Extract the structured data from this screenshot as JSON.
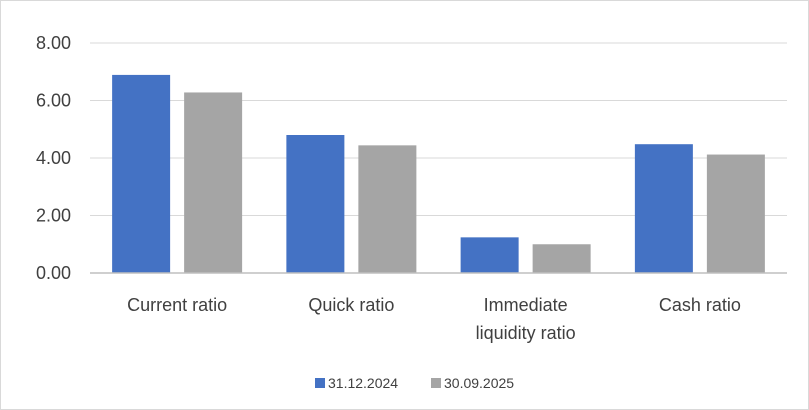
{
  "chart_data": {
    "type": "bar",
    "categories": [
      [
        "Current ratio"
      ],
      [
        "Quick ratio"
      ],
      [
        "Immediate",
        "liquidity ratio"
      ],
      [
        "Cash ratio"
      ]
    ],
    "series": [
      {
        "name": "31.12.2024",
        "values": [
          6.89,
          4.8,
          1.24,
          4.48
        ],
        "color": "#4472c4"
      },
      {
        "name": "30.09.2025",
        "values": [
          6.28,
          4.44,
          1.0,
          4.12
        ],
        "color": "#a5a5a5"
      }
    ],
    "ylim": [
      0,
      8
    ],
    "yticks": [
      "0.00",
      "2.00",
      "4.00",
      "6.00",
      "8.00"
    ],
    "ytick_values": [
      0,
      2,
      4,
      6,
      8
    ],
    "grid": true,
    "legend_position": "bottom",
    "gridline_color": "#d9d9d9",
    "axis_color": "#bfbfbf",
    "text_color": "#404040"
  }
}
